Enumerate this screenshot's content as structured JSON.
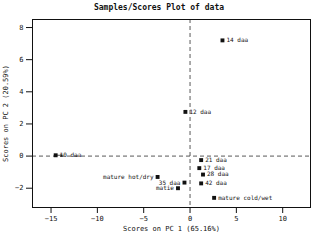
{
  "chart_data": {
    "type": "scatter",
    "title": "Samples/Scores Plot of data",
    "xlabel": "Scores on PC 1 (65.16%)",
    "ylabel": "Scores on PC 2 (20.59%)",
    "xlim": [
      -17,
      13
    ],
    "ylim": [
      -3.2,
      8.5
    ],
    "xticks": [
      -15,
      -10,
      -5,
      0,
      5,
      10
    ],
    "yticks": [
      -2,
      0,
      2,
      4,
      6,
      8
    ],
    "color": "#111111",
    "marker": "square",
    "grid": false,
    "points": [
      {
        "x": -14.5,
        "y": 0.05,
        "label": "10 daa"
      },
      {
        "x": -0.5,
        "y": 2.75,
        "label": "12 daa"
      },
      {
        "x": 3.5,
        "y": 7.2,
        "label": "14 daa"
      },
      {
        "x": 1.2,
        "y": -0.25,
        "label": "21 daa"
      },
      {
        "x": 1.0,
        "y": -0.75,
        "label": "17 daa"
      },
      {
        "x": 1.4,
        "y": -1.15,
        "label": "28 daa"
      },
      {
        "x": -0.6,
        "y": -1.65,
        "label": "35 daa"
      },
      {
        "x": 1.2,
        "y": -1.7,
        "label": "42 daa"
      },
      {
        "x": -1.3,
        "y": -2.0,
        "label": "matie"
      },
      {
        "x": -3.5,
        "y": -1.3,
        "label": "mature hot/dry"
      },
      {
        "x": 2.6,
        "y": -2.6,
        "label": "mature cold/wet"
      }
    ],
    "annotations": [
      {
        "type": "arrow",
        "x": -14.6,
        "y": 0.05,
        "x_end": -13.8,
        "y_end": 0.05
      },
      {
        "type": "hline",
        "y": 0
      },
      {
        "type": "vline",
        "x": 0
      }
    ]
  }
}
